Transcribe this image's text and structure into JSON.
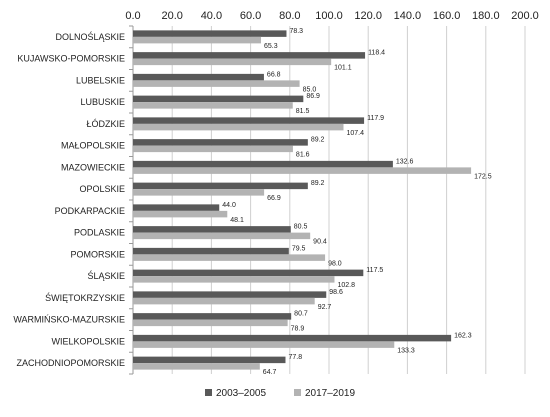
{
  "chart_data": {
    "type": "bar",
    "orientation": "horizontal",
    "title": "",
    "xlabel": "",
    "ylabel": "",
    "xlim": [
      0,
      200
    ],
    "x_ticks": [
      "0.0",
      "20.0",
      "40.0",
      "60.0",
      "80.0",
      "100.0",
      "120.0",
      "140.0",
      "160.0",
      "180.0",
      "200.0"
    ],
    "x_axis_position": "top",
    "grid": true,
    "legend_position": "bottom",
    "categories": [
      "DOLNOŚLĄSKIE",
      "KUJAWSKO-POMORSKIE",
      "LUBELSKIE",
      "LUBUSKIE",
      "ŁÓDZKIE",
      "MAŁOPOLSKIE",
      "MAZOWIECKIE",
      "OPOLSKIE",
      "PODKARPACKIE",
      "PODLASKIE",
      "POMORSKIE",
      "ŚLĄSKIE",
      "ŚWIĘTOKRZYSKIE",
      "WARMIŃSKO-MAZURSKIE",
      "WIELKOPOLSKIE",
      "ZACHODNIOPOMORSKIE"
    ],
    "series": [
      {
        "name": "2003–2005",
        "color": "#595959",
        "values": [
          78.3,
          118.4,
          66.8,
          86.9,
          117.9,
          89.2,
          132.6,
          89.2,
          44.0,
          80.5,
          79.5,
          117.5,
          98.6,
          80.7,
          162.3,
          77.8
        ],
        "labels": [
          "78.3",
          "118.4",
          "66.8",
          "86.9",
          "117.9",
          "89.2",
          "132.6",
          "89.2",
          "44.0",
          "80.5",
          "79.5",
          "117.5",
          "98.6",
          "80.7",
          "162.3",
          "77.8"
        ]
      },
      {
        "name": "2017–2019",
        "color": "#b3b3b3",
        "values": [
          65.3,
          101.1,
          85.0,
          81.5,
          107.4,
          81.6,
          172.5,
          66.9,
          48.1,
          90.4,
          98.0,
          102.8,
          92.7,
          78.9,
          133.3,
          64.7
        ],
        "labels": [
          "65.3",
          "101.1",
          "85.0",
          "81.5",
          "107.4",
          "81.6",
          "172.5",
          "66.9",
          "48.1",
          "90.4",
          "98.0",
          "102.8",
          "92.7",
          "78.9",
          "133.3",
          "64.7"
        ]
      }
    ]
  }
}
